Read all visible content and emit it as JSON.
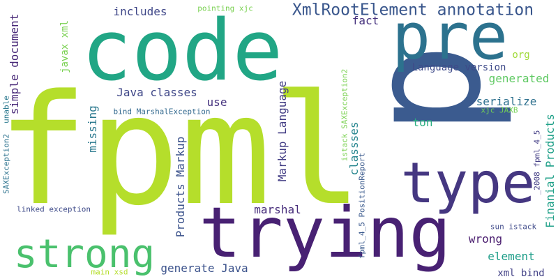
{
  "cloud": {
    "background": "#ffffff",
    "words": [
      {
        "text": "fpml",
        "color": "#b5de2b"
      },
      {
        "text": "p",
        "color": "#3b5b8f"
      },
      {
        "text": "code",
        "color": "#21a685"
      },
      {
        "text": "pre",
        "color": "#2c728e"
      },
      {
        "text": "trying",
        "color": "#482173"
      },
      {
        "text": "type",
        "color": "#453781"
      },
      {
        "text": "strong",
        "color": "#4ac16d"
      },
      {
        "text": "XmlRootElement annotation",
        "color": "#39568c"
      },
      {
        "text": "includes",
        "color": "#3f4788"
      },
      {
        "text": "fact",
        "color": "#46327e"
      },
      {
        "text": "pointing xjc",
        "color": "#7ad151"
      },
      {
        "text": "javax xml",
        "color": "#7ad151"
      },
      {
        "text": "simple document",
        "color": "#482878"
      },
      {
        "text": "unable",
        "color": "#2a788e"
      },
      {
        "text": "SAXException2",
        "color": "#2c728e"
      },
      {
        "text": "Java classes",
        "color": "#3f4788"
      },
      {
        "text": "use",
        "color": "#46337f"
      },
      {
        "text": "missing",
        "color": "#2a788e"
      },
      {
        "text": "bind MarshalException",
        "color": "#31688e"
      },
      {
        "text": "org",
        "color": "#a0da39"
      },
      {
        "text": "Language version",
        "color": "#3e4a89"
      },
      {
        "text": "generated",
        "color": "#5ec962"
      },
      {
        "text": "Markup Language",
        "color": "#433e85"
      },
      {
        "text": "classses",
        "color": "#25858e"
      },
      {
        "text": "serialize",
        "color": "#2d708e"
      },
      {
        "text": "ton",
        "color": "#28ae80"
      },
      {
        "text": "xjc JAXB",
        "color": "#73d056"
      },
      {
        "text": "Finanial Products",
        "color": "#1fa088"
      },
      {
        "text": "Products Markup",
        "color": "#3b528b"
      },
      {
        "text": "istack SAXException2",
        "color": "#7ad151"
      },
      {
        "text": "fpml_4_5 PositionReport",
        "color": "#38588c"
      },
      {
        "text": "_2008 fpml_4_5",
        "color": "#433e85"
      },
      {
        "text": "linked exception",
        "color": "#3e4a89"
      },
      {
        "text": "marshal",
        "color": "#472d7b"
      },
      {
        "text": "wrong",
        "color": "#481b6d"
      },
      {
        "text": "element",
        "color": "#1f9e89"
      },
      {
        "text": "sun istack",
        "color": "#3e4989"
      },
      {
        "text": "generate Java",
        "color": "#3b528b"
      },
      {
        "text": "xml bind",
        "color": "#424186"
      },
      {
        "text": "main xsd",
        "color": "#b5de2b"
      }
    ]
  }
}
